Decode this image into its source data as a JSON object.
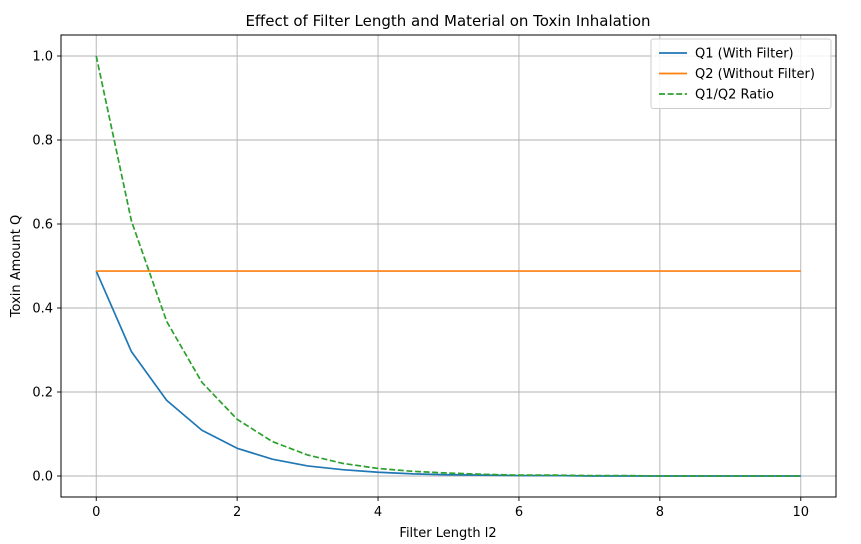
{
  "chart_data": {
    "type": "line",
    "title": "Effect of Filter Length and Material on Toxin Inhalation",
    "xlabel": "Filter Length l2",
    "ylabel": "Toxin Amount Q",
    "xlim": [
      -0.5,
      10.5
    ],
    "ylim": [
      -0.05,
      1.05
    ],
    "xticks": [
      0,
      2,
      4,
      6,
      8,
      10
    ],
    "xtick_labels": [
      "0",
      "2",
      "4",
      "6",
      "8",
      "10"
    ],
    "yticks": [
      0.0,
      0.2,
      0.4,
      0.6,
      0.8,
      1.0
    ],
    "ytick_labels": [
      "0.0",
      "0.2",
      "0.4",
      "0.6",
      "0.8",
      "1.0"
    ],
    "grid": true,
    "legend_position": "top-right",
    "series": [
      {
        "name": "Q1 (With Filter)",
        "color": "#1f77b4",
        "dash": "solid",
        "x": [
          0,
          0.5,
          1,
          1.5,
          2,
          2.5,
          3,
          3.5,
          4,
          4.5,
          5,
          5.5,
          6,
          6.5,
          7,
          7.5,
          8,
          8.5,
          9,
          9.5,
          10
        ],
        "y": [
          0.488,
          0.296,
          0.18,
          0.109,
          0.066,
          0.04,
          0.024,
          0.015,
          0.009,
          0.005,
          0.003,
          0.002,
          0.001,
          0.001,
          0.0,
          0.0,
          0.0,
          0.0,
          0.0,
          0.0,
          0.0
        ]
      },
      {
        "name": "Q2 (Without Filter)",
        "color": "#ff7f0e",
        "dash": "solid",
        "x": [
          0,
          10
        ],
        "y": [
          0.488,
          0.488
        ]
      },
      {
        "name": "Q1/Q2 Ratio",
        "color": "#2ca02c",
        "dash": "dashed",
        "x": [
          0,
          0.5,
          1,
          1.5,
          2,
          2.5,
          3,
          3.5,
          4,
          4.5,
          5,
          5.5,
          6,
          6.5,
          7,
          7.5,
          8,
          8.5,
          9,
          9.5,
          10
        ],
        "y": [
          1.0,
          0.607,
          0.368,
          0.223,
          0.135,
          0.082,
          0.05,
          0.03,
          0.018,
          0.011,
          0.007,
          0.004,
          0.002,
          0.002,
          0.001,
          0.001,
          0.0,
          0.0,
          0.0,
          0.0,
          0.0
        ]
      }
    ]
  }
}
